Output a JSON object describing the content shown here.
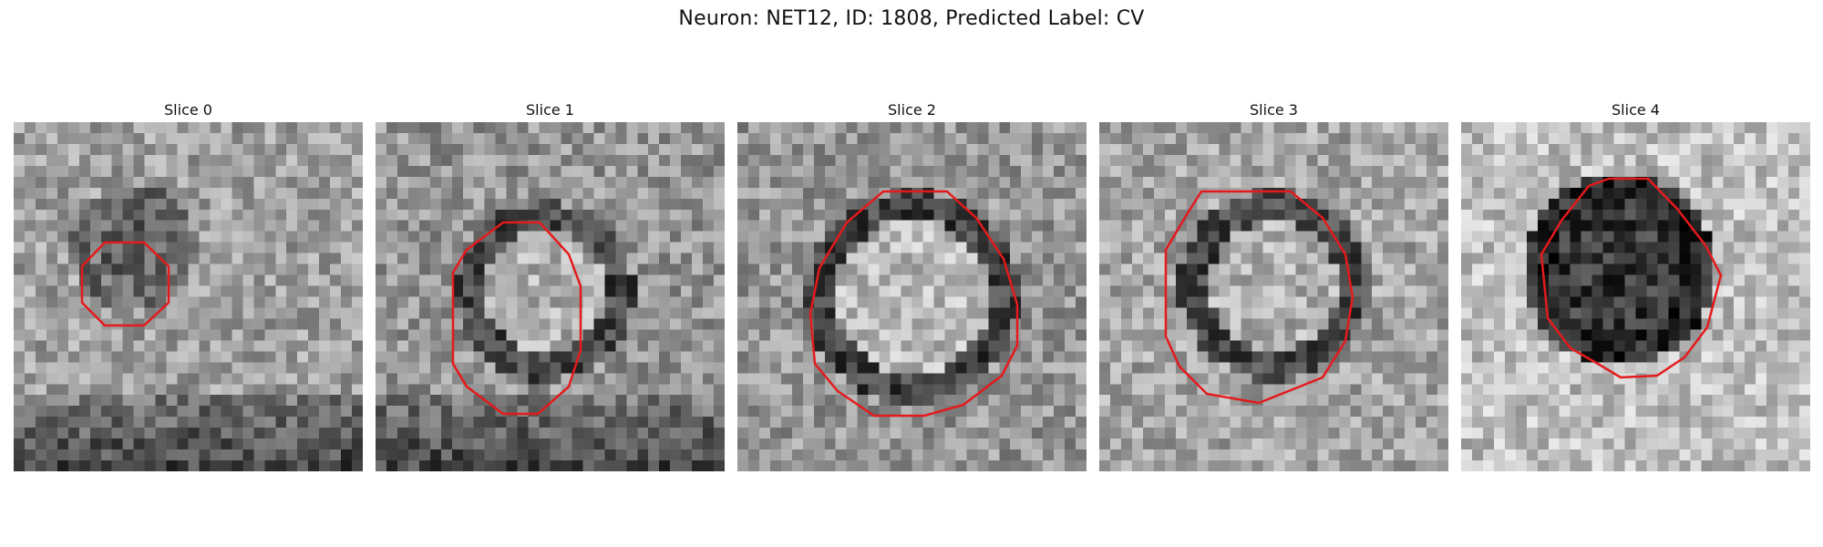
{
  "figure": {
    "title": "Neuron: NET12, ID: 1808, Predicted Label: CV"
  },
  "panels": [
    {
      "title": "Slice 0",
      "contour_color": "#e41a1c"
    },
    {
      "title": "Slice 1",
      "contour_color": "#e41a1c"
    },
    {
      "title": "Slice 2",
      "contour_color": "#e41a1c"
    },
    {
      "title": "Slice 3",
      "contour_color": "#e41a1c"
    },
    {
      "title": "Slice 4",
      "contour_color": "#e41a1c"
    }
  ],
  "style": {
    "colormap": "gray",
    "background": "#ffffff"
  }
}
